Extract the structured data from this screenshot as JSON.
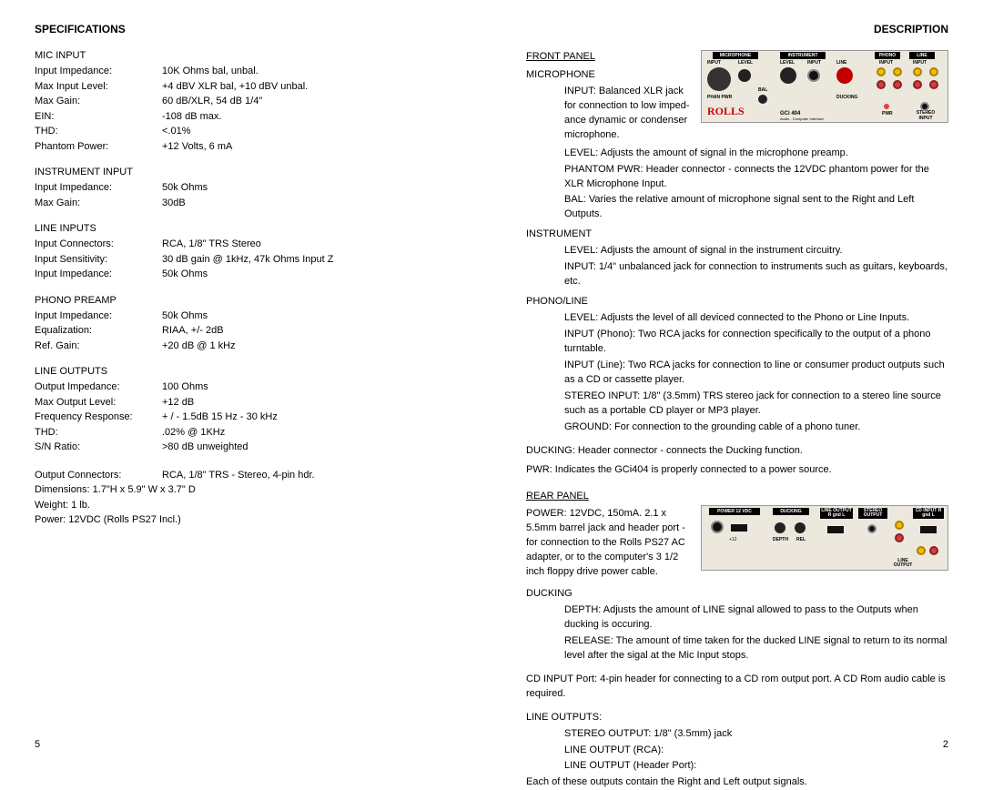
{
  "left": {
    "heading": "SPECIFICATIONS",
    "pageNum": "5",
    "sections": [
      {
        "title": "MIC INPUT",
        "rows": [
          {
            "label": "Input Impedance:",
            "value": "10K Ohms bal, unbal."
          },
          {
            "label": "Max Input Level:",
            "value": "+4 dBV XLR bal, +10 dBV unbal."
          },
          {
            "label": "Max Gain:",
            "value": "60 dB/XLR, 54 dB 1/4\""
          },
          {
            "label": "EIN:",
            "value": "-108 dB max."
          },
          {
            "label": "THD:",
            "value": "<.01%"
          },
          {
            "label": "Phantom Power:",
            "value": "+12 Volts, 6 mA"
          }
        ]
      },
      {
        "title": "INSTRUMENT INPUT",
        "rows": [
          {
            "label": "Input Impedance:",
            "value": "50k Ohms"
          },
          {
            "label": "Max Gain:",
            "value": "30dB"
          }
        ]
      },
      {
        "title": "LINE INPUTS",
        "rows": [
          {
            "label": "Input Connectors:",
            "value": "RCA, 1/8\" TRS Stereo"
          },
          {
            "label": "Input Sensitivity:",
            "value": "30 dB gain @ 1kHz, 47k Ohms Input Z"
          },
          {
            "label": "Input Impedance:",
            "value": "50k Ohms"
          }
        ]
      },
      {
        "title": "PHONO PREAMP",
        "rows": [
          {
            "label": "Input Impedance:",
            "value": "50k Ohms"
          },
          {
            "label": "Equalization:",
            "value": "RIAA, +/- 2dB"
          },
          {
            "label": "Ref. Gain:",
            "value": "+20 dB @ 1 kHz"
          }
        ]
      },
      {
        "title": "LINE OUTPUTS",
        "rows": [
          {
            "label": "Output Impedance:",
            "value": "100 Ohms"
          },
          {
            "label": "Max Output Level:",
            "value": "+12 dB"
          },
          {
            "label": "Frequency Response:",
            "value": "+ / - 1.5dB 15 Hz - 30 kHz"
          },
          {
            "label": "THD:",
            "value": ".02% @ 1KHz"
          },
          {
            "label": "S/N Ratio:",
            "value": ">80 dB unweighted"
          }
        ]
      }
    ],
    "misc": [
      {
        "label": "Output Connectors:",
        "value": "RCA, 1/8\" TRS - Stereo, 4-pin hdr."
      },
      {
        "full": "Dimensions: 1.7\"H x 5.9\" W x 3.7\" D"
      },
      {
        "full": "Weight: 1 lb."
      },
      {
        "full": "Power:  12VDC (Rolls PS27 Incl.)"
      }
    ]
  },
  "right": {
    "heading": "DESCRIPTION",
    "pageNum": "2",
    "frontPanel": {
      "title": "FRONT PANEL",
      "micHeader": "MICROPHONE",
      "micInput": "INPUT:   Balanced XLR jack for connection to low imped­ance dynamic or condenser micro­phone.",
      "micLevel": "LEVEL:  Adjusts the amount of signal in the microphone preamp.",
      "micPhantom": "PHANTOM PWR: Header connector - connects the 12VDC phantom power for the XLR Microphone Input.",
      "micBal": "BAL:       Varies the relative amount of microphone signal sent to the Right and Left Outputs.",
      "instHeader": "INSTRUMENT",
      "instLevel": "LEVEL: Adjusts the amount of signal in the instrument circuitry.",
      "instInput": "INPUT: 1/4\" unbalanced jack for connection to instruments such as guitars, keyboards, etc.",
      "phonoHeader": "PHONO/LINE",
      "phonoLevel": "LEVEL: Adjusts the level of all deviced connected to the Phono or Line Inputs.",
      "phonoInput": "INPUT (Phono): Two RCA jacks for connection specifically to the output of a phono turntable.",
      "lineInput": "INPUT (Line): Two RCA jacks for connection to line or consumer product outputs such as a CD or cassette player.",
      "stereoInput": "STEREO INPUT: 1/8\" (3.5mm) TRS stereo jack for connection to a stereo line source such as a portable CD player or MP3 player.",
      "ground": "GROUND: For connection to the grounding cable of a phono tuner.",
      "ducking": "DUCKING: Header connector - connects the Ducking function.",
      "pwr": "PWR: Indicates the GCi404 is properly connected to a power source."
    },
    "rearPanel": {
      "title": "REAR PANEL",
      "power": "POWER: 12VDC, 150mA. 2.1 x 5.5mm barrel jack and header port - for connection to the Rolls PS27 AC adapter, or to the computer's 3 1/2 inch floppy drive power cable.",
      "duckHeader": "DUCKING",
      "depth": "DEPTH: Adjusts the amount of LINE signal allowed to pass to the Outputs when ducking is occuring.",
      "release": "RELEASE: The amount of time taken for the ducked LINE signal to return to its normal level after the sigal at the Mic Input stops.",
      "cdInput": "CD INPUT Port: 4-pin header for connecting to a CD rom output port. A CD Rom audio cable is required.",
      "lineOutHeader": "LINE OUTPUTS:",
      "stereoOut": "STEREO OUTPUT: 1/8\" (3.5mm) jack",
      "lineOutRca": "LINE OUTPUT (RCA):",
      "lineOutHdr": "LINE OUTPUT (Header Port):",
      "each": "Each of these outputs contain the Right and Left output signals."
    },
    "frontPanelImg": {
      "rolls": "ROLLS",
      "model": "GCi 404",
      "modelSub": "Audio - Computer Interface",
      "labels": [
        "MICROPHONE",
        "INPUT",
        "LEVEL",
        "BAL",
        "PHAN PWR",
        "INSTRUMENT",
        "LEVEL",
        "INPUT",
        "PHONO",
        "LINE",
        "INPUT",
        "INPUT",
        "DUCKING",
        "PWR",
        "STEREO INPUT",
        "LINE"
      ]
    },
    "rearPanelImg": {
      "labels": [
        "POWER 12 VDC",
        "+12",
        "G",
        "DUCKING",
        "DEPTH",
        "REL",
        "LINE OUTPUT R gnd L",
        "STEREO OUTPUT",
        "CD INPUT R gnd L",
        "LINE OUTPUT"
      ]
    }
  }
}
